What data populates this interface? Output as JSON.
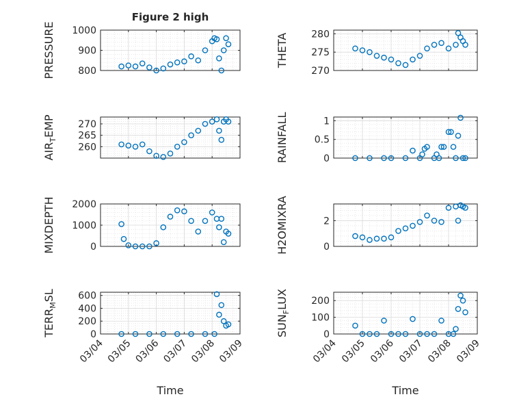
{
  "figure": {
    "title": "Figure 2 high"
  },
  "style": {
    "marker_color": "#0072BD",
    "axes_color": "#262626",
    "grid_color": "#d9d9d9",
    "background": "#ffffff"
  },
  "chart_data": [
    {
      "type": "scatter",
      "id": "pressure",
      "title": "Figure 2 high",
      "ylabel": "PRESSURE",
      "xlabel": "",
      "xlim": [
        "03/04",
        "03/09"
      ],
      "ylim": [
        800,
        1000
      ],
      "yticks": [
        800,
        900,
        1000
      ],
      "xtick_labels_visible": false,
      "grid": true,
      "x": [
        "03/04 18:00",
        "03/05 00:00",
        "03/05 06:00",
        "03/05 12:00",
        "03/05 18:00",
        "03/06 00:00",
        "03/06 06:00",
        "03/06 12:00",
        "03/06 18:00",
        "03/07 00:00",
        "03/07 06:00",
        "03/07 12:00",
        "03/07 18:00",
        "03/08 00:00",
        "03/08 02:00",
        "03/08 04:00",
        "03/08 06:00",
        "03/08 08:00",
        "03/08 10:00",
        "03/08 12:00",
        "03/08 14:00"
      ],
      "y": [
        820,
        825,
        820,
        835,
        815,
        800,
        810,
        830,
        840,
        845,
        870,
        850,
        900,
        945,
        960,
        955,
        860,
        800,
        900,
        960,
        930
      ]
    },
    {
      "type": "scatter",
      "id": "theta",
      "ylabel": "THETA",
      "xlabel": "",
      "xlim": [
        "03/04",
        "03/09"
      ],
      "ylim": [
        270,
        281
      ],
      "yticks": [
        270,
        275,
        280
      ],
      "xtick_labels_visible": false,
      "grid": true,
      "x": [
        "03/04 18:00",
        "03/05 00:00",
        "03/05 06:00",
        "03/05 12:00",
        "03/05 18:00",
        "03/06 00:00",
        "03/06 06:00",
        "03/06 12:00",
        "03/06 18:00",
        "03/07 00:00",
        "03/07 06:00",
        "03/07 12:00",
        "03/07 18:00",
        "03/08 00:00",
        "03/08 06:00",
        "03/08 08:00",
        "03/08 10:00",
        "03/08 12:00",
        "03/08 14:00"
      ],
      "y": [
        276,
        275.5,
        275,
        274,
        273.5,
        273,
        272,
        271.5,
        273,
        274,
        276,
        277,
        277.5,
        276,
        277,
        280.2,
        279,
        278,
        277
      ]
    },
    {
      "type": "scatter",
      "id": "air_temp",
      "ylabel": "AIR_TEMP",
      "ylabel_display": [
        "AIR",
        "T",
        "EMP"
      ],
      "xlabel": "",
      "xlim": [
        "03/04",
        "03/09"
      ],
      "ylim": [
        255,
        273
      ],
      "yticks": [
        260,
        265,
        270
      ],
      "xtick_labels_visible": false,
      "grid": true,
      "x": [
        "03/04 18:00",
        "03/05 00:00",
        "03/05 06:00",
        "03/05 12:00",
        "03/05 18:00",
        "03/06 00:00",
        "03/06 06:00",
        "03/06 12:00",
        "03/06 18:00",
        "03/07 00:00",
        "03/07 06:00",
        "03/07 12:00",
        "03/07 18:00",
        "03/08 00:00",
        "03/08 04:00",
        "03/08 06:00",
        "03/08 08:00",
        "03/08 10:00",
        "03/08 12:00",
        "03/08 14:00"
      ],
      "y": [
        261,
        260.5,
        260,
        261,
        258,
        256,
        255.5,
        257,
        260,
        262,
        265,
        267,
        270,
        271,
        272,
        267,
        263,
        271,
        272,
        271
      ]
    },
    {
      "type": "scatter",
      "id": "rainfall",
      "ylabel": "RAINFALL",
      "xlabel": "",
      "xlim": [
        "03/04",
        "03/09"
      ],
      "ylim": [
        0,
        1.1
      ],
      "yticks": [
        0,
        0.5,
        1
      ],
      "xtick_labels_visible": false,
      "grid": true,
      "x": [
        "03/04 18:00",
        "03/05 06:00",
        "03/05 18:00",
        "03/06 00:00",
        "03/06 12:00",
        "03/06 18:00",
        "03/07 00:00",
        "03/07 02:00",
        "03/07 04:00",
        "03/07 06:00",
        "03/07 12:00",
        "03/07 14:00",
        "03/07 16:00",
        "03/07 18:00",
        "03/07 20:00",
        "03/08 00:00",
        "03/08 02:00",
        "03/08 04:00",
        "03/08 06:00",
        "03/08 08:00",
        "03/08 10:00",
        "03/08 12:00",
        "03/08 14:00"
      ],
      "y": [
        0,
        0,
        0,
        0,
        0,
        0.2,
        0,
        0.1,
        0.25,
        0.3,
        0,
        0.1,
        0,
        0.3,
        0.3,
        0.7,
        0.7,
        0.3,
        0,
        0.6,
        1.08,
        0,
        0
      ]
    },
    {
      "type": "scatter",
      "id": "mixdepth",
      "ylabel": "MIXDEPTH",
      "xlabel": "",
      "xlim": [
        "03/04",
        "03/09"
      ],
      "ylim": [
        0,
        2000
      ],
      "yticks": [
        0,
        1000,
        2000
      ],
      "xtick_labels_visible": false,
      "grid": true,
      "x": [
        "03/04 18:00",
        "03/04 20:00",
        "03/05 00:00",
        "03/05 06:00",
        "03/05 12:00",
        "03/05 18:00",
        "03/06 00:00",
        "03/06 06:00",
        "03/06 12:00",
        "03/06 18:00",
        "03/07 00:00",
        "03/07 06:00",
        "03/07 12:00",
        "03/07 18:00",
        "03/08 00:00",
        "03/08 04:00",
        "03/08 06:00",
        "03/08 08:00",
        "03/08 10:00",
        "03/08 12:00",
        "03/08 14:00"
      ],
      "y": [
        1050,
        350,
        50,
        0,
        0,
        0,
        150,
        900,
        1400,
        1700,
        1650,
        1200,
        700,
        1200,
        1600,
        1300,
        900,
        1300,
        200,
        700,
        600
      ]
    },
    {
      "type": "scatter",
      "id": "h2omixra",
      "ylabel": "H2OMIXRA",
      "xlabel": "",
      "xlim": [
        "03/04",
        "03/09"
      ],
      "ylim": [
        0,
        3.3
      ],
      "yticks": [
        0,
        2
      ],
      "xtick_labels_visible": false,
      "grid": true,
      "x": [
        "03/04 18:00",
        "03/05 00:00",
        "03/05 06:00",
        "03/05 12:00",
        "03/05 18:00",
        "03/06 00:00",
        "03/06 06:00",
        "03/06 12:00",
        "03/06 18:00",
        "03/07 00:00",
        "03/07 06:00",
        "03/07 12:00",
        "03/07 18:00",
        "03/08 00:00",
        "03/08 06:00",
        "03/08 08:00",
        "03/08 10:00",
        "03/08 12:00",
        "03/08 14:00"
      ],
      "y": [
        0.8,
        0.7,
        0.5,
        0.6,
        0.6,
        0.7,
        1.2,
        1.4,
        1.6,
        1.9,
        2.4,
        2.0,
        1.9,
        3.0,
        3.1,
        2.0,
        3.2,
        3.1,
        3.0
      ]
    },
    {
      "type": "scatter",
      "id": "terr_msl",
      "ylabel": "TERR_MSL",
      "ylabel_display": [
        "TERR",
        "M",
        "SL"
      ],
      "xlabel": "Time",
      "xlim": [
        "03/04",
        "03/09"
      ],
      "ylim": [
        0,
        650
      ],
      "yticks": [
        0,
        200,
        400,
        600
      ],
      "xtick_labels": [
        "03/04",
        "03/05",
        "03/06",
        "03/07",
        "03/08",
        "03/09"
      ],
      "grid": true,
      "x": [
        "03/04 18:00",
        "03/05 06:00",
        "03/05 18:00",
        "03/06 06:00",
        "03/06 18:00",
        "03/07 06:00",
        "03/07 18:00",
        "03/08 02:00",
        "03/08 04:00",
        "03/08 06:00",
        "03/08 08:00",
        "03/08 10:00",
        "03/08 12:00",
        "03/08 14:00"
      ],
      "y": [
        0,
        0,
        0,
        0,
        0,
        0,
        0,
        0,
        620,
        300,
        450,
        200,
        130,
        150
      ]
    },
    {
      "type": "scatter",
      "id": "sun_flux",
      "ylabel": "SUN_FLUX",
      "ylabel_display": [
        "SUN",
        "F",
        "LUX"
      ],
      "xlabel": "Time",
      "xlim": [
        "03/04",
        "03/09"
      ],
      "ylim": [
        0,
        250
      ],
      "yticks": [
        0,
        100,
        200
      ],
      "xtick_labels": [
        "03/04",
        "03/05",
        "03/06",
        "03/07",
        "03/08",
        "03/09"
      ],
      "grid": true,
      "x": [
        "03/04 18:00",
        "03/05 00:00",
        "03/05 06:00",
        "03/05 12:00",
        "03/05 18:00",
        "03/06 00:00",
        "03/06 06:00",
        "03/06 12:00",
        "03/06 18:00",
        "03/07 00:00",
        "03/07 06:00",
        "03/07 12:00",
        "03/07 18:00",
        "03/08 00:00",
        "03/08 04:00",
        "03/08 06:00",
        "03/08 08:00",
        "03/08 10:00",
        "03/08 12:00",
        "03/08 14:00"
      ],
      "y": [
        50,
        0,
        0,
        0,
        80,
        0,
        0,
        0,
        90,
        0,
        0,
        0,
        80,
        0,
        0,
        30,
        150,
        230,
        200,
        130
      ]
    }
  ]
}
